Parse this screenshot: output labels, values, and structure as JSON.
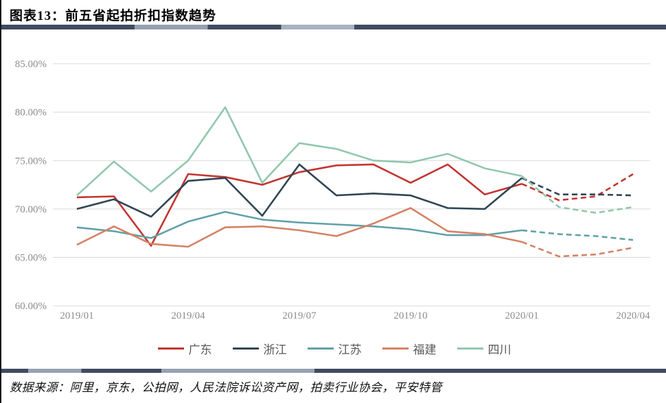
{
  "header": {
    "title": "图表13：前五省起拍折扣指数趋势"
  },
  "footer": {
    "source": "数据来源：阿里，京东，公拍网，人民法院诉讼资产网，拍卖行业协会，平安特管"
  },
  "chart_data": {
    "type": "line",
    "title": "前五省起拍折扣指数趋势",
    "x_months": [
      "2019/01",
      "2019/02",
      "2019/03",
      "2019/04",
      "2019/05",
      "2019/06",
      "2019/07",
      "2019/08",
      "2019/09",
      "2019/10",
      "2019/11",
      "2019/12",
      "2020/01",
      "2020/02",
      "2020/03",
      "2020/04"
    ],
    "x_tick_labels": [
      "2019/01",
      "2019/04",
      "2019/07",
      "2019/10",
      "2020/01",
      "2020/04"
    ],
    "x_tick_indices": [
      0,
      3,
      6,
      9,
      12,
      15
    ],
    "yticks": [
      {
        "value": 85,
        "label": "85.00%"
      },
      {
        "value": 80,
        "label": "80.00%"
      },
      {
        "value": 75,
        "label": "75.00%"
      },
      {
        "value": 70,
        "label": "70.00%"
      },
      {
        "value": 65,
        "label": "65.00%"
      },
      {
        "value": 60,
        "label": "60.00%"
      }
    ],
    "ylim": [
      60,
      87.5
    ],
    "grid": true,
    "legend_position": "bottom",
    "forecast_start_index": 12,
    "forecast_style": "dashed",
    "series": [
      {
        "name": "广东",
        "color": "#c23531",
        "values": [
          71.2,
          71.3,
          66.2,
          73.6,
          73.3,
          72.5,
          73.8,
          74.5,
          74.6,
          72.7,
          74.6,
          71.5,
          72.6,
          70.9,
          71.3,
          73.6
        ]
      },
      {
        "name": "浙江",
        "color": "#2f4554",
        "values": [
          70.0,
          71.0,
          69.2,
          72.9,
          73.2,
          69.3,
          74.6,
          71.4,
          71.6,
          71.4,
          70.1,
          70.0,
          73.2,
          71.5,
          71.5,
          71.4
        ]
      },
      {
        "name": "江苏",
        "color": "#61a0a8",
        "values": [
          68.1,
          67.7,
          67.0,
          68.7,
          69.7,
          68.9,
          68.6,
          68.4,
          68.2,
          67.9,
          67.3,
          67.3,
          67.8,
          67.4,
          67.2,
          66.8
        ]
      },
      {
        "name": "福建",
        "color": "#d48265",
        "values": [
          66.3,
          68.2,
          66.4,
          66.1,
          68.1,
          68.2,
          67.8,
          67.2,
          68.5,
          70.1,
          67.7,
          67.4,
          66.6,
          65.1,
          65.3,
          66.0
        ]
      },
      {
        "name": "四川",
        "color": "#91c7ae",
        "values": [
          71.4,
          74.9,
          71.8,
          75.0,
          80.5,
          72.7,
          76.8,
          76.2,
          75.0,
          74.8,
          75.7,
          74.2,
          73.4,
          70.2,
          69.6,
          70.2
        ]
      }
    ]
  }
}
